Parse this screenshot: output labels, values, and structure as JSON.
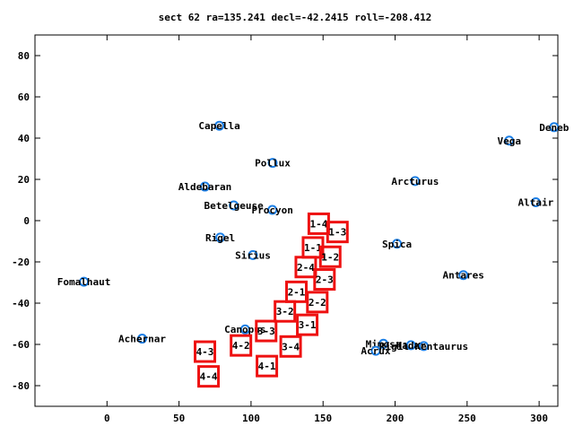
{
  "chart_data": {
    "type": "scatter",
    "title": "sect 62 ra=135.241 decl=-42.2415 roll=-208.412",
    "xlabel": "",
    "ylabel": "",
    "xlim": [
      -50,
      313
    ],
    "ylim": [
      -90,
      90
    ],
    "xticks": [
      "0",
      "50",
      "100",
      "150",
      "200",
      "250",
      "300"
    ],
    "yticks": [
      "-80",
      "-60",
      "-40",
      "-20",
      "0",
      "20",
      "40",
      "60",
      "80"
    ],
    "grid": false,
    "legend": "none",
    "colors": {
      "star": "#1c7fe6",
      "field": "#ee1111",
      "axis": "#000000"
    },
    "stars": [
      {
        "name": "Capella",
        "x": 78,
        "y": 46
      },
      {
        "name": "Pollux",
        "x": 115,
        "y": 28
      },
      {
        "name": "Aldebaran",
        "x": 68,
        "y": 16.5
      },
      {
        "name": "Betelgeuse",
        "x": 88,
        "y": 7.4
      },
      {
        "name": "Procyon",
        "x": 114.8,
        "y": 5.2
      },
      {
        "name": "Rigel",
        "x": 78.6,
        "y": -8.2
      },
      {
        "name": "Sirius",
        "x": 101.3,
        "y": -16.7
      },
      {
        "name": "Fomalhaut",
        "x": -16,
        "y": -29.6
      },
      {
        "name": "Canopus",
        "x": 95.9,
        "y": -52.7
      },
      {
        "name": "Achernar",
        "x": 24.4,
        "y": -57.2
      },
      {
        "name": "Arcturus",
        "x": 213.9,
        "y": 19.2
      },
      {
        "name": "Spica",
        "x": 201.3,
        "y": -11.2
      },
      {
        "name": "Antares",
        "x": 247.4,
        "y": -26.4
      },
      {
        "name": "Vega",
        "x": 279.2,
        "y": 38.8
      },
      {
        "name": "Deneb",
        "x": 310.4,
        "y": 45.3
      },
      {
        "name": "Altair",
        "x": 297.7,
        "y": 8.9
      },
      {
        "name": "Mimosa",
        "x": 191.9,
        "y": -59.7
      },
      {
        "name": "Acrux",
        "x": 186.6,
        "y": -63.1
      },
      {
        "name": "Hadar",
        "x": 211,
        "y": -60.4
      },
      {
        "name": "Rigil Kentaurus",
        "x": 219.9,
        "y": -60.8
      }
    ],
    "fields": [
      {
        "label": "1-4",
        "x": 147,
        "y": -1.5
      },
      {
        "label": "1-3",
        "x": 160,
        "y": -5.5
      },
      {
        "label": "1-1",
        "x": 143,
        "y": -13
      },
      {
        "label": "1-2",
        "x": 155,
        "y": -17.5
      },
      {
        "label": "2-4",
        "x": 138,
        "y": -22.5
      },
      {
        "label": "2-3",
        "x": 151,
        "y": -28.5
      },
      {
        "label": "2-1",
        "x": 131.5,
        "y": -34.5
      },
      {
        "label": "2-2",
        "x": 146,
        "y": -39.5
      },
      {
        "label": "3-2",
        "x": 123.5,
        "y": -44
      },
      {
        "label": "3-1",
        "x": 139,
        "y": -50.5
      },
      {
        "label": "3-3",
        "x": 110.5,
        "y": -53.5
      },
      {
        "label": "3-4",
        "x": 127.5,
        "y": -61
      },
      {
        "label": "4-2",
        "x": 93,
        "y": -60.5
      },
      {
        "label": "4-3",
        "x": 68,
        "y": -63.5
      },
      {
        "label": "4-1",
        "x": 111,
        "y": -70.5
      },
      {
        "label": "4-4",
        "x": 70.5,
        "y": -75.5
      }
    ]
  }
}
